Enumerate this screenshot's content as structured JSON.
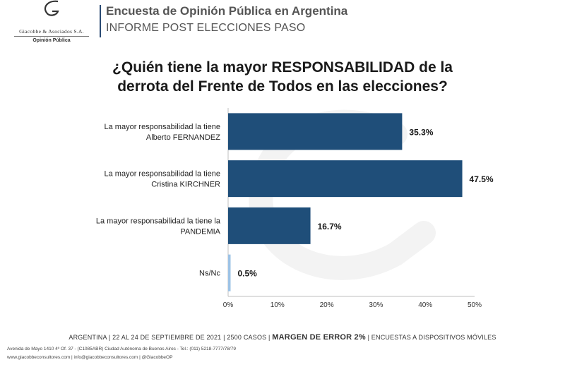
{
  "brand": {
    "name": "Giacobbe & Asociados S.A.",
    "tagline": "Opinión Pública"
  },
  "header": {
    "title": "Encuesta de Opinión Pública en Argentina",
    "subtitle": "INFORME POST ELECCIONES PASO"
  },
  "chart_data": {
    "type": "bar",
    "orientation": "horizontal",
    "title_line1": "¿Quién tiene la mayor RESPONSABILIDAD de la",
    "title_line2": "derrota del Frente de Todos en las elecciones?",
    "categories": [
      [
        "La mayor responsabilidad la tiene",
        "Alberto FERNANDEZ"
      ],
      [
        "La mayor responsabilidad la tiene",
        "Cristina KIRCHNER"
      ],
      [
        "La mayor responsabilidad la tiene la",
        "PANDEMIA"
      ],
      [
        "Ns/Nc"
      ]
    ],
    "values": [
      35.3,
      47.5,
      16.7,
      0.5
    ],
    "value_labels": [
      "35.3%",
      "47.5%",
      "16.7%",
      "0.5%"
    ],
    "xlim": [
      0,
      50
    ],
    "xticks": [
      "0%",
      "10%",
      "20%",
      "30%",
      "40%",
      "50%"
    ],
    "colors": [
      "#1f4e79",
      "#1f4e79",
      "#1f4e79",
      "#9dc3e6"
    ]
  },
  "footer": {
    "left": "ARGENTINA | 22 AL 24 DE SEPTIEMBRE DE 2021 | 2500 CASOS |",
    "margin": "MARGEN DE ERROR 2%",
    "right": "| ENCUESTAS A DISPOSITIVOS MÓVILES",
    "address": "Avenida de Mayo 1410 4º Of. 37 - (C1085ABR) Ciudad Autónoma de Buenos Aires - Tel.: (011) 5218-7777/78/79",
    "contact": "www.giacobbeconsultores.com | info@giacobbeconsultores.com | @GiacobbeOP"
  }
}
